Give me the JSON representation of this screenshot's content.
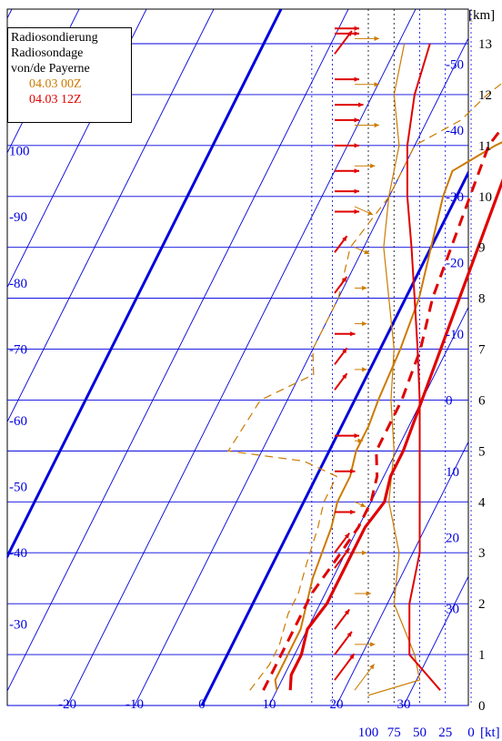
{
  "chart_data": {
    "type": "line",
    "title": "Radiosondierung Radiosondage von/de Payerne",
    "title_lines": [
      "Radiosondierung",
      "Radiosondage",
      "von/de Payerne"
    ],
    "height_unit_label": "[km]",
    "wind_unit_label": "[kt]",
    "height_ticks_km": [
      0,
      1,
      2,
      3,
      4,
      5,
      6,
      7,
      8,
      9,
      10,
      11,
      12,
      13
    ],
    "temperature_ticks_c": [
      "-20",
      "-10",
      "0",
      "10",
      "20",
      "30"
    ],
    "isotherm_labels_right": [
      "-50",
      "-40",
      "-30",
      "-20",
      "-10",
      "0",
      "10",
      "20",
      "30"
    ],
    "isotherm_labels_left": [
      "100",
      "-90",
      "-80",
      "-70",
      "-60",
      "-50",
      "-40",
      "-30"
    ],
    "wind_speed_ticks_kt": [
      "100",
      "75",
      "50",
      "25",
      "0"
    ],
    "grid": true,
    "legend_position": "top-left",
    "colors": {
      "series_00z": "#cc7a00",
      "series_12z": "#e00000",
      "grid": "#0000dd"
    },
    "series": [
      {
        "name": "04.03 00Z",
        "color": "#cc7a00",
        "temperature": [
          [
            10,
            0.3
          ],
          [
            9,
            0.5
          ],
          [
            9,
            1
          ],
          [
            9,
            1.5
          ],
          [
            8,
            2
          ],
          [
            7,
            2.5
          ],
          [
            6.5,
            3
          ],
          [
            6,
            3.5
          ],
          [
            5,
            4
          ],
          [
            5,
            4.5
          ],
          [
            4,
            5
          ],
          [
            4,
            5.5
          ],
          [
            3.5,
            6
          ],
          [
            3,
            7
          ],
          [
            2,
            8
          ],
          [
            0,
            9
          ],
          [
            -2,
            10
          ],
          [
            -2.5,
            10.5
          ],
          [
            2,
            11
          ],
          [
            8,
            11.5
          ],
          [
            13,
            12
          ],
          [
            16,
            12.5
          ],
          [
            19,
            13
          ],
          [
            23,
            13.6
          ]
        ],
        "dewpoint": [
          [
            6,
            0.3
          ],
          [
            7,
            0.8
          ],
          [
            7,
            1.2
          ],
          [
            6,
            1.8
          ],
          [
            6,
            2.2
          ],
          [
            5,
            2.8
          ],
          [
            4,
            3.5
          ],
          [
            3,
            4
          ],
          [
            3,
            4.5
          ],
          [
            -3,
            4.8
          ],
          [
            -15,
            5
          ],
          [
            -14,
            6
          ],
          [
            -8,
            6.5
          ],
          [
            -10,
            7
          ],
          [
            -10,
            8
          ],
          [
            -12,
            9
          ],
          [
            -10,
            10
          ],
          [
            -10,
            11
          ],
          [
            -5,
            11.5
          ],
          [
            -3,
            12
          ],
          [
            0,
            12.5
          ]
        ],
        "wind_speed_kt": [
          [
            100,
            0.2
          ],
          [
            50,
            0.5
          ],
          [
            55,
            1
          ],
          [
            75,
            2
          ],
          [
            70,
            3
          ],
          [
            80,
            4
          ],
          [
            75,
            5
          ],
          [
            78,
            6
          ],
          [
            75,
            7
          ],
          [
            80,
            8
          ],
          [
            85,
            9
          ],
          [
            80,
            10
          ],
          [
            70,
            11
          ],
          [
            75,
            12
          ],
          [
            65,
            13
          ]
        ]
      },
      {
        "name": "04.03 12Z",
        "color": "#e00000",
        "temperature": [
          [
            12,
            0.3
          ],
          [
            11,
            0.6
          ],
          [
            11,
            1
          ],
          [
            10,
            1.5
          ],
          [
            11,
            2
          ],
          [
            11,
            2.5
          ],
          [
            11,
            3
          ],
          [
            11,
            3.5
          ],
          [
            12,
            4
          ],
          [
            11,
            4.5
          ],
          [
            11,
            5
          ],
          [
            10,
            6
          ],
          [
            9,
            7
          ],
          [
            8,
            8
          ],
          [
            7,
            9
          ],
          [
            6,
            10
          ],
          [
            5,
            11
          ],
          [
            9,
            11.5
          ],
          [
            14,
            12
          ],
          [
            17,
            12.3
          ],
          [
            19,
            12.7
          ],
          [
            22,
            13.3
          ],
          [
            25,
            13.8
          ]
        ],
        "dewpoint": [
          [
            8,
            0.3
          ],
          [
            8,
            0.8
          ],
          [
            8,
            1.2
          ],
          [
            8,
            1.8
          ],
          [
            8,
            2.2
          ],
          [
            9,
            2.8
          ],
          [
            10,
            3.5
          ],
          [
            10,
            4
          ],
          [
            9,
            4.5
          ],
          [
            7,
            5
          ],
          [
            7,
            6
          ],
          [
            6,
            7
          ],
          [
            4,
            8
          ],
          [
            3,
            9
          ],
          [
            2,
            10
          ],
          [
            1,
            11
          ],
          [
            2,
            11.5
          ],
          [
            4,
            12
          ]
        ],
        "wind_speed_kt": [
          [
            30,
            0.3
          ],
          [
            60,
            1
          ],
          [
            60,
            2
          ],
          [
            50,
            3
          ],
          [
            50,
            4
          ],
          [
            50,
            5
          ],
          [
            50,
            6
          ],
          [
            52,
            7
          ],
          [
            55,
            8
          ],
          [
            58,
            9
          ],
          [
            62,
            10
          ],
          [
            62,
            11
          ],
          [
            55,
            12
          ],
          [
            40,
            13
          ]
        ]
      }
    ],
    "wind_barbs_00z": [
      {
        "km": 0.3,
        "kt": 40,
        "dir": "up-right"
      },
      {
        "km": 1.2,
        "kt": 25,
        "dir": "right"
      },
      {
        "km": 2.2,
        "kt": 20,
        "dir": "right"
      },
      {
        "km": 3.0,
        "kt": 15,
        "dir": "right"
      },
      {
        "km": 4.0,
        "kt": 15,
        "dir": "down-right"
      },
      {
        "km": 5.2,
        "kt": 10,
        "dir": "right"
      },
      {
        "km": 6.6,
        "kt": 15,
        "dir": "right"
      },
      {
        "km": 7.5,
        "kt": 15,
        "dir": "right"
      },
      {
        "km": 8.2,
        "kt": 15,
        "dir": "right"
      },
      {
        "km": 9.0,
        "kt": 20,
        "dir": "down-right"
      },
      {
        "km": 9.8,
        "kt": 25,
        "dir": "down-right"
      },
      {
        "km": 10.6,
        "kt": 25,
        "dir": "right"
      },
      {
        "km": 11.4,
        "kt": 30,
        "dir": "right"
      },
      {
        "km": 12.2,
        "kt": 30,
        "dir": "right"
      },
      {
        "km": 13.1,
        "kt": 30,
        "dir": "right"
      }
    ],
    "wind_barbs_12z": [
      {
        "km": 0.5,
        "kt": 40,
        "dir": "up-right"
      },
      {
        "km": 1.0,
        "kt": 35,
        "dir": "up-right"
      },
      {
        "km": 1.5,
        "kt": 30,
        "dir": "up-right"
      },
      {
        "km": 2.7,
        "kt": 30,
        "dir": "up-right"
      },
      {
        "km": 3.0,
        "kt": 30,
        "dir": "up-right"
      },
      {
        "km": 3.8,
        "kt": 25,
        "dir": "right"
      },
      {
        "km": 4.6,
        "kt": 25,
        "dir": "right"
      },
      {
        "km": 5.3,
        "kt": 30,
        "dir": "right"
      },
      {
        "km": 6.2,
        "kt": 25,
        "dir": "up-right"
      },
      {
        "km": 6.7,
        "kt": 25,
        "dir": "up-right"
      },
      {
        "km": 7.3,
        "kt": 25,
        "dir": "right"
      },
      {
        "km": 8.1,
        "kt": 25,
        "dir": "up-right"
      },
      {
        "km": 8.9,
        "kt": 25,
        "dir": "up-right"
      },
      {
        "km": 9.7,
        "kt": 30,
        "dir": "right"
      },
      {
        "km": 10.1,
        "kt": 30,
        "dir": "right"
      },
      {
        "km": 10.5,
        "kt": 30,
        "dir": "right"
      },
      {
        "km": 11.0,
        "kt": 30,
        "dir": "right"
      },
      {
        "km": 11.5,
        "kt": 30,
        "dir": "right"
      },
      {
        "km": 11.8,
        "kt": 35,
        "dir": "right"
      },
      {
        "km": 12.3,
        "kt": 30,
        "dir": "right"
      },
      {
        "km": 12.8,
        "kt": 35,
        "dir": "up-right"
      },
      {
        "km": 13.2,
        "kt": 30,
        "dir": "right"
      },
      {
        "km": 13.3,
        "kt": 30,
        "dir": "right"
      }
    ]
  }
}
